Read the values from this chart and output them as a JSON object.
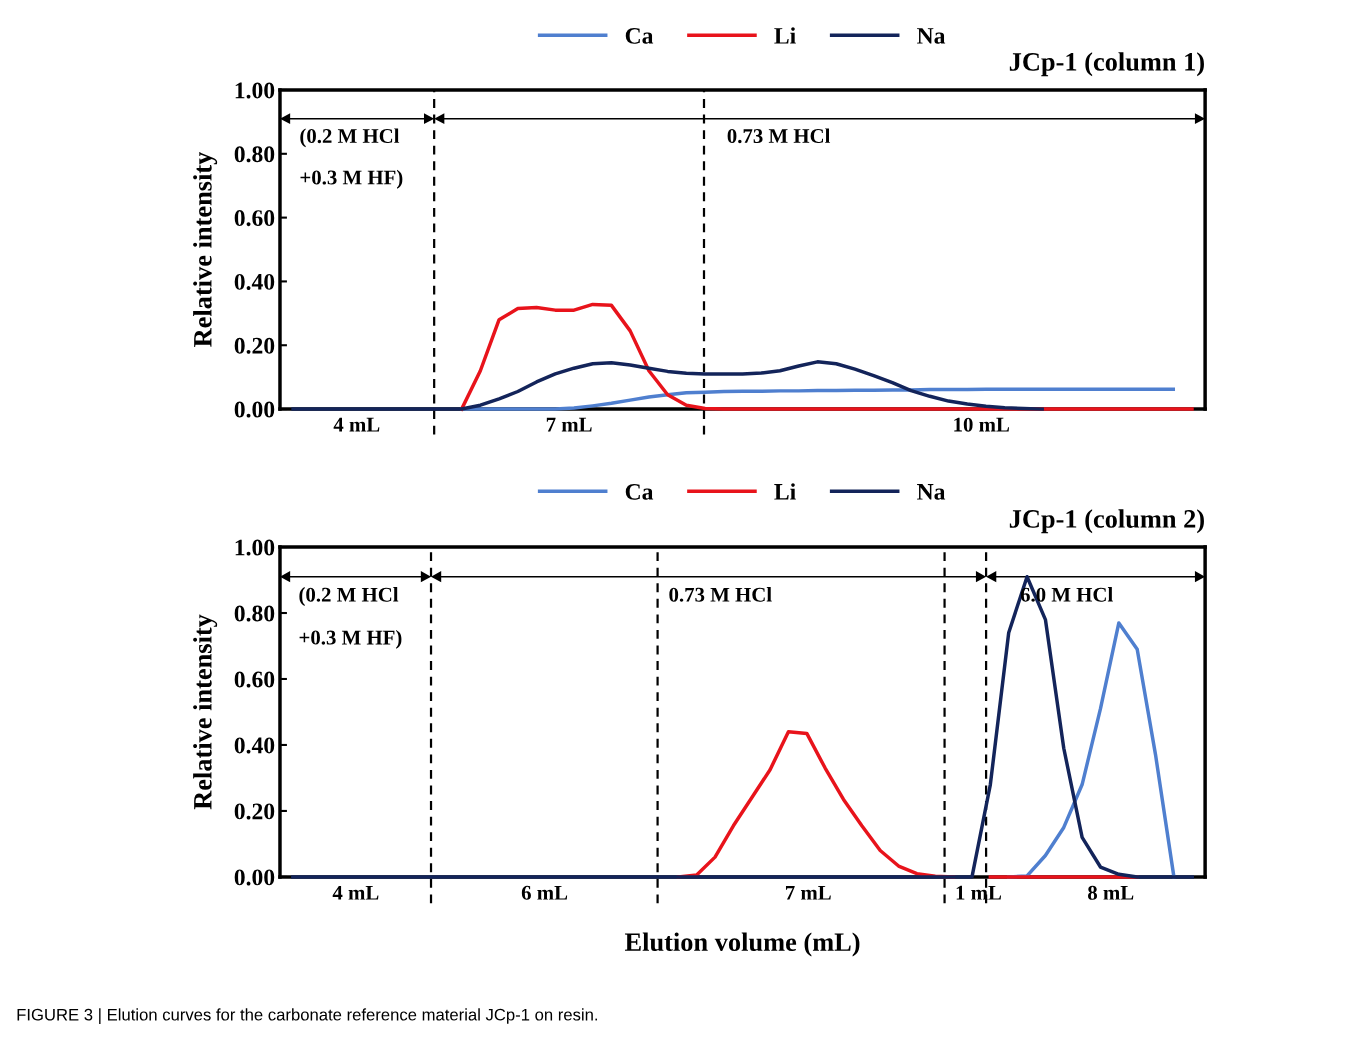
{
  "chart_data": [
    {
      "type": "line",
      "title": "JCp-1 (column 1)",
      "ylabel": "Relative intensity",
      "legend": "top",
      "tick_labels": "y",
      "line_style": "solid",
      "categories": [
        null,
        null,
        null,
        null,
        null,
        null,
        null,
        null,
        null,
        null,
        null,
        null,
        null,
        null,
        null,
        null,
        null,
        null,
        null,
        null,
        null,
        null,
        null,
        null,
        null,
        null,
        null,
        null,
        null,
        null,
        null,
        null,
        null,
        null,
        null,
        null,
        null,
        null,
        null,
        null,
        null,
        null,
        null,
        null,
        null,
        null,
        null,
        null,
        null
      ],
      "ylim": [
        0,
        1.0
      ],
      "yticks": [
        {
          "value": 0,
          "label": "0.00"
        },
        {
          "value": 0.2,
          "label": "0.20"
        },
        {
          "value": 0.4,
          "label": "0.40"
        },
        {
          "value": 0.6,
          "label": "0.60"
        },
        {
          "value": 0.8,
          "label": "0.80"
        },
        {
          "value": 1.0,
          "label": "1.00"
        }
      ],
      "series": [
        {
          "name": "Ca",
          "color": "#4f7fcf",
          "values": [
            null,
            null,
            null,
            null,
            null,
            null,
            null,
            null,
            null,
            0,
            0,
            0,
            0,
            0,
            0,
            0.003,
            0.01,
            0.018,
            0.028,
            0.038,
            0.045,
            0.051,
            0.053,
            0.055,
            0.056,
            0.056,
            0.057,
            0.057,
            0.058,
            0.058,
            0.059,
            0.059,
            0.06,
            0.06,
            0.061,
            0.061,
            0.061,
            0.062,
            0.062,
            0.062,
            0.062,
            0.062,
            0.062,
            0.062,
            0.062,
            0.062,
            0.062,
            0.062,
            null
          ]
        },
        {
          "name": "Li",
          "color": "#e8131b",
          "values": [
            null,
            null,
            null,
            null,
            null,
            null,
            null,
            null,
            null,
            0,
            0.12,
            0.28,
            0.315,
            0.318,
            0.31,
            0.31,
            0.328,
            0.325,
            0.245,
            0.12,
            0.045,
            0.012,
            0.002,
            0,
            0,
            0,
            0,
            0,
            0,
            0,
            0,
            0,
            0,
            0,
            0,
            0,
            0,
            0,
            0,
            0,
            0,
            0,
            0,
            0,
            0,
            0,
            0,
            0,
            0
          ]
        },
        {
          "name": "Na",
          "color": "#13245a",
          "values": [
            0,
            0,
            0,
            0,
            0,
            0,
            0,
            0,
            0,
            0,
            0.012,
            0.032,
            0.055,
            0.085,
            0.11,
            0.128,
            0.142,
            0.145,
            0.138,
            0.128,
            0.118,
            0.112,
            0.11,
            0.11,
            0.11,
            0.113,
            0.12,
            0.135,
            0.148,
            0.142,
            0.125,
            0.105,
            0.083,
            0.058,
            0.04,
            0.025,
            0.016,
            0.009,
            0.004,
            0.002,
            0,
            null,
            null,
            null,
            null,
            null,
            null,
            null,
            null
          ]
        }
      ],
      "annotations": [
        "(0.2 M HCl",
        "+0.3 M HF)",
        "0.73 M HCl",
        "4 mL",
        "7 mL",
        "10 mL"
      ]
    },
    {
      "type": "line",
      "title": "JCp-1 (column 2)",
      "ylabel": "Relative intensity",
      "xlabel": "Elution volume (mL)",
      "legend": "top",
      "tick_labels": "y",
      "line_style": "solid",
      "categories": [
        null,
        null,
        null,
        null,
        null,
        null,
        null,
        null,
        null,
        null,
        null,
        null,
        null,
        null,
        null,
        null,
        null,
        null,
        null,
        null,
        null,
        null,
        null,
        null,
        null,
        null,
        null,
        null,
        null,
        null,
        null,
        null,
        null,
        null,
        null,
        null,
        null,
        null,
        null,
        null,
        null,
        null,
        null,
        null,
        null,
        null,
        null,
        null,
        null,
        null
      ],
      "ylim": [
        0,
        1.0
      ],
      "yticks": [
        {
          "value": 0,
          "label": "0.00"
        },
        {
          "value": 0.2,
          "label": "0.20"
        },
        {
          "value": 0.4,
          "label": "0.40"
        },
        {
          "value": 0.6,
          "label": "0.60"
        },
        {
          "value": 0.8,
          "label": "0.80"
        },
        {
          "value": 1.0,
          "label": "1.00"
        }
      ],
      "series": [
        {
          "name": "Ca",
          "color": "#4f7fcf",
          "values": [
            null,
            null,
            null,
            null,
            null,
            null,
            null,
            null,
            null,
            null,
            null,
            null,
            null,
            null,
            null,
            null,
            null,
            null,
            null,
            null,
            null,
            null,
            null,
            null,
            null,
            null,
            null,
            null,
            null,
            null,
            null,
            null,
            null,
            null,
            null,
            null,
            null,
            null,
            null,
            0,
            0.003,
            0.065,
            0.15,
            0.28,
            0.51,
            0.77,
            0.69,
            0.37,
            0,
            null
          ]
        },
        {
          "name": "Li",
          "color": "#e8131b",
          "values": [
            null,
            null,
            null,
            null,
            null,
            null,
            null,
            null,
            null,
            null,
            null,
            null,
            null,
            null,
            null,
            null,
            null,
            null,
            null,
            null,
            null,
            0,
            0.006,
            0.06,
            0.155,
            0.24,
            0.325,
            0.44,
            0.435,
            0.33,
            0.235,
            0.155,
            0.08,
            0.033,
            0.01,
            0.002,
            0,
            null,
            0,
            0,
            0,
            0,
            0,
            0,
            0,
            0,
            0,
            null,
            null,
            null
          ]
        },
        {
          "name": "Na",
          "color": "#13245a",
          "values": [
            0,
            0,
            0,
            0,
            0,
            0,
            0,
            0,
            0,
            0,
            0,
            0,
            0,
            0,
            0,
            0,
            0,
            0,
            0,
            0,
            0,
            0,
            0,
            0,
            0,
            0,
            0,
            0,
            0,
            0,
            0,
            0,
            0,
            0,
            0,
            0,
            0,
            0,
            0.28,
            0.74,
            0.91,
            0.78,
            0.39,
            0.12,
            0.03,
            0.008,
            0,
            0,
            0,
            0
          ]
        }
      ],
      "annotations": [
        "(0.2 M HCl",
        "+0.3 M HF)",
        "0.73 M HCl",
        "6.0 M HCl",
        "4 mL",
        "6 mL",
        "7 mL",
        "1 mL",
        "8 mL",
        "FIGURE 3 | Elution curves for the carbonate reference material JCp-1 on resin."
      ]
    }
  ]
}
